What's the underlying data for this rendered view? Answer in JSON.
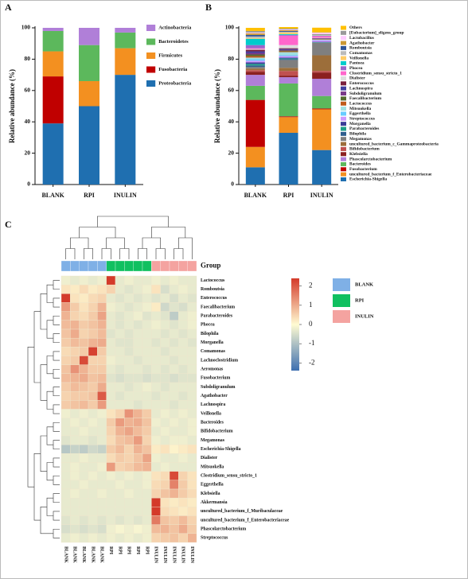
{
  "chart_data": [
    {
      "type": "stacked_bar",
      "panel_label": "A",
      "ylabel": "Relative abundance (%)",
      "categories": [
        "BLANK",
        "RPI",
        "INULIN"
      ],
      "series": [
        {
          "name": "Proteobacteria",
          "color": "#1f6fb0",
          "values": [
            39,
            50,
            70
          ]
        },
        {
          "name": "Fusobacteria",
          "color": "#c00000",
          "values": [
            30,
            0,
            0
          ]
        },
        {
          "name": "Firmicutes",
          "color": "#f39020",
          "values": [
            16,
            16,
            17
          ]
        },
        {
          "name": "Bacteroidetes",
          "color": "#5cb85c",
          "values": [
            13,
            23,
            10
          ]
        },
        {
          "name": "Actinobacteria",
          "color": "#b07fd8",
          "values": [
            2,
            11,
            3
          ]
        }
      ],
      "ylim": [
        0,
        100
      ],
      "yticks": [
        0,
        20,
        40,
        60,
        80,
        100
      ]
    },
    {
      "type": "stacked_bar",
      "panel_label": "B",
      "ylabel": "Relative abundance (%)",
      "categories": [
        "BLANK",
        "RPI",
        "INULIN"
      ],
      "series": [
        {
          "name": "Escherichia-Shigella",
          "color": "#1f6fb0",
          "values": [
            11,
            33,
            22
          ]
        },
        {
          "name": "uncultured_bacterium_f_Enterobacteriaceae",
          "color": "#f39020",
          "values": [
            13,
            10,
            26
          ]
        },
        {
          "name": "Fusobacterium",
          "color": "#c00000",
          "values": [
            30,
            0.5,
            0.5
          ]
        },
        {
          "name": "Bacteroides",
          "color": "#5cb85c",
          "values": [
            9,
            21,
            8
          ]
        },
        {
          "name": "Phascolarctobacterium",
          "color": "#b07fd8",
          "values": [
            7,
            4,
            11
          ]
        },
        {
          "name": "Klebsiella",
          "color": "#8b2020",
          "values": [
            2,
            1,
            4
          ]
        },
        {
          "name": "Bifidobacterium",
          "color": "#c05050",
          "values": [
            1,
            3,
            1
          ]
        },
        {
          "name": "uncultured_bacterium_c_Gammaproteobacteria",
          "color": "#9c6e3a",
          "values": [
            1,
            2,
            10
          ]
        },
        {
          "name": "Megamonas",
          "color": "#7f7f7f",
          "values": [
            1,
            5,
            8
          ]
        },
        {
          "name": "Bilophila",
          "color": "#2e5e8e",
          "values": [
            1,
            0.5,
            0.2
          ]
        },
        {
          "name": "Parabacteroides",
          "color": "#1f9e89",
          "values": [
            1,
            0.5,
            0.2
          ]
        },
        {
          "name": "Morganella",
          "color": "#3b3b98",
          "values": [
            1,
            0.5,
            0.2
          ]
        },
        {
          "name": "Streptococcus",
          "color": "#cc99ff",
          "values": [
            1,
            1,
            1
          ]
        },
        {
          "name": "Eggerthella",
          "color": "#66ccff",
          "values": [
            1,
            0.5,
            0.2
          ]
        },
        {
          "name": "Mitsuokella",
          "color": "#a0e0e0",
          "values": [
            1,
            2,
            0.2
          ]
        },
        {
          "name": "Lactococcus",
          "color": "#c05a1a",
          "values": [
            1,
            0.5,
            0.2
          ]
        },
        {
          "name": "Faecalibacterium",
          "color": "#556b2f",
          "values": [
            1,
            0.5,
            0.2
          ]
        },
        {
          "name": "Subdoligranulum",
          "color": "#7a3a8a",
          "values": [
            1,
            0.5,
            0.2
          ]
        },
        {
          "name": "Lachnospira",
          "color": "#4040a0",
          "values": [
            1,
            0.5,
            0.2
          ]
        },
        {
          "name": "Enterococcus",
          "color": "#7a1f3d",
          "values": [
            1,
            0.5,
            0.2
          ]
        },
        {
          "name": "Dialister",
          "color": "#dddddd",
          "values": [
            0.5,
            2,
            0.2
          ]
        },
        {
          "name": "Clostridium_sensu_stricto_1",
          "color": "#ff66cc",
          "values": [
            0.5,
            6,
            1
          ]
        },
        {
          "name": "Phocea",
          "color": "#9966cc",
          "values": [
            2,
            0.5,
            0.2
          ]
        },
        {
          "name": "Pantoea",
          "color": "#00cccc",
          "values": [
            4,
            0.5,
            0.2
          ]
        },
        {
          "name": "Veillonella",
          "color": "#ffcc66",
          "values": [
            0.5,
            1,
            0.2
          ]
        },
        {
          "name": "Comamonas",
          "color": "#bbbbbb",
          "values": [
            1,
            0.5,
            0.2
          ]
        },
        {
          "name": "Romboutsia",
          "color": "#2f5597",
          "values": [
            1,
            0.5,
            0.2
          ]
        },
        {
          "name": "Agathobacter",
          "color": "#cc9933",
          "values": [
            1,
            0.5,
            0.2
          ]
        },
        {
          "name": "Lactobacillus",
          "color": "#ffccff",
          "values": [
            0.5,
            0.5,
            1
          ]
        },
        {
          "name": "[Eubacterium]_eligens_group",
          "color": "#999999",
          "values": [
            1,
            0.5,
            0.2
          ]
        },
        {
          "name": "Others",
          "color": "#ffc000",
          "values": [
            2,
            1,
            3
          ]
        }
      ],
      "ylim": [
        0,
        100
      ],
      "yticks": [
        0,
        20,
        40,
        60,
        80,
        100
      ]
    },
    {
      "type": "heatmap",
      "panel_label": "C",
      "legend_title": "Group",
      "rows": [
        "Lactococcus",
        "Romboutsia",
        "Enterococcus",
        "Faecalibacterium",
        "Parabacteroides",
        "Phocea",
        "Bilophila",
        "Morganella",
        "Comamonas",
        "Lachnoclostridium",
        "Aeromonas",
        "Fusobacterium",
        "Subdoligranulum",
        "Agathobacter",
        "Lachnospira",
        "Veillonella",
        "Bacteroides",
        "Bifidobacterium",
        "Megamonas",
        "Escherichia-Shigella",
        "Dialister",
        "Mitsuokella",
        "Clostridium_sensu_stricto_1",
        "Eggerthella",
        "Klebsiella",
        "Akkermansia",
        "uncultured_bacterium_f_Muribaculaceae",
        "uncultured_bacterium_f_Enterobacteriaceae",
        "Phascolarctobacterium",
        "Streptococcus"
      ],
      "columns": [
        "BLANK",
        "BLANK",
        "BLANK",
        "BLANK",
        "BLANK",
        "RPI",
        "RPI",
        "RPI",
        "RPI",
        "RPI",
        "INULIN",
        "INULIN",
        "INULIN",
        "INULIN",
        "INULIN"
      ],
      "values": [
        [
          -0.2,
          -0.3,
          -0.2,
          -0.3,
          -0.2,
          2.5,
          -0.3,
          -0.2,
          -0.3,
          -0.3,
          -0.2,
          -0.3,
          -0.2,
          -0.3,
          -0.3
        ],
        [
          0.3,
          0.2,
          0.4,
          0.2,
          0.3,
          0.5,
          -0.3,
          -0.4,
          -0.3,
          -0.2,
          0.3,
          -0.5,
          -0.3,
          -0.2,
          -0.3
        ],
        [
          2.4,
          0.3,
          0.2,
          0.4,
          0.5,
          -0.3,
          -0.4,
          -0.3,
          -0.4,
          -0.3,
          -0.4,
          -0.3,
          -0.5,
          -0.3,
          -0.4
        ],
        [
          1.2,
          0.6,
          0.3,
          0.5,
          0.9,
          -0.2,
          -0.3,
          -0.4,
          -0.3,
          -0.2,
          0.2,
          -0.6,
          -0.4,
          -0.5,
          -0.3
        ],
        [
          0.9,
          0.5,
          0.4,
          0.6,
          1.1,
          -0.3,
          -0.4,
          -0.3,
          -0.2,
          -0.4,
          -0.3,
          -0.4,
          -0.8,
          -0.3,
          -0.2
        ],
        [
          0.8,
          0.9,
          0.6,
          0.7,
          0.9,
          -0.3,
          -0.4,
          -0.3,
          -0.4,
          -0.3,
          -0.2,
          -0.3,
          -0.4,
          -0.3,
          -0.2
        ],
        [
          0.7,
          1.0,
          0.5,
          0.6,
          0.8,
          -0.4,
          -0.3,
          -0.4,
          -0.3,
          -0.3,
          -0.3,
          -0.4,
          -0.3,
          -0.4,
          -0.3
        ],
        [
          0.6,
          0.8,
          0.7,
          0.9,
          1.0,
          -0.3,
          -0.4,
          -0.4,
          -0.3,
          -0.3,
          -0.4,
          -0.3,
          -0.4,
          -0.3,
          -0.4
        ],
        [
          0.4,
          0.5,
          0.6,
          2.3,
          0.6,
          -0.3,
          -0.3,
          -0.4,
          -0.3,
          -0.3,
          -0.3,
          -0.4,
          -0.3,
          -0.3,
          -0.3
        ],
        [
          0.5,
          0.6,
          2.2,
          0.5,
          0.5,
          -0.2,
          -0.3,
          -0.3,
          -0.4,
          -0.3,
          -0.3,
          -0.3,
          -0.4,
          -0.3,
          -0.3
        ],
        [
          0.7,
          1.3,
          0.9,
          0.6,
          0.6,
          -0.3,
          -0.4,
          -0.3,
          -0.3,
          -0.4,
          -0.3,
          -0.4,
          -0.3,
          -0.4,
          -0.3
        ],
        [
          0.8,
          0.9,
          1.0,
          0.7,
          0.8,
          -0.4,
          -0.5,
          -0.4,
          -0.4,
          -0.5,
          -0.4,
          -0.4,
          -0.5,
          -0.4,
          -0.4
        ],
        [
          0.6,
          0.8,
          0.7,
          0.6,
          1.0,
          -0.3,
          -0.3,
          -0.4,
          -0.3,
          -0.2,
          -0.3,
          -0.4,
          -0.3,
          -0.3,
          -0.3
        ],
        [
          0.5,
          0.6,
          0.6,
          0.7,
          2.0,
          -0.3,
          -0.4,
          -0.3,
          -0.3,
          -0.3,
          -0.4,
          -0.3,
          -0.3,
          -0.4,
          -0.3
        ],
        [
          0.6,
          0.7,
          0.8,
          0.6,
          1.2,
          -0.3,
          -0.3,
          -0.3,
          -0.4,
          -0.3,
          -0.3,
          -0.3,
          -0.4,
          -0.3,
          -0.3
        ],
        [
          -0.2,
          -0.3,
          -0.2,
          -0.3,
          -0.2,
          0.3,
          0.5,
          1.3,
          0.9,
          0.6,
          -0.3,
          -0.2,
          -0.3,
          -0.2,
          -0.3
        ],
        [
          -0.3,
          -0.2,
          -0.3,
          -0.2,
          -0.3,
          0.6,
          1.2,
          0.9,
          1.0,
          0.7,
          -0.2,
          -0.3,
          -0.2,
          -0.3,
          -0.2
        ],
        [
          -0.3,
          -0.3,
          -0.2,
          -0.3,
          -0.3,
          0.5,
          0.9,
          1.1,
          0.8,
          0.6,
          -0.3,
          -0.2,
          -0.3,
          -0.3,
          -0.2
        ],
        [
          -0.4,
          -0.3,
          -0.3,
          -0.4,
          -0.3,
          0.4,
          0.7,
          0.8,
          1.2,
          0.5,
          -0.2,
          -0.3,
          -0.2,
          -0.2,
          -0.3
        ],
        [
          -0.9,
          -0.7,
          -0.8,
          -0.6,
          -0.7,
          0.6,
          0.8,
          0.5,
          0.9,
          0.7,
          0.2,
          0.3,
          0.1,
          0.2,
          0.3
        ],
        [
          -0.3,
          -0.3,
          -0.2,
          -0.3,
          -0.3,
          0.4,
          0.6,
          0.5,
          0.7,
          1.1,
          -0.2,
          -0.3,
          -0.3,
          -0.2,
          -0.3
        ],
        [
          -0.3,
          -0.2,
          -0.3,
          -0.3,
          -0.2,
          1.2,
          0.5,
          0.6,
          0.8,
          0.9,
          -0.3,
          -0.2,
          -0.3,
          -0.3,
          -0.3
        ],
        [
          -0.3,
          -0.2,
          -0.3,
          -0.2,
          -0.3,
          -0.2,
          -0.3,
          -0.2,
          -0.3,
          -0.2,
          0.3,
          0.4,
          2.2,
          0.5,
          0.3
        ],
        [
          -0.3,
          -0.3,
          -0.2,
          -0.3,
          -0.3,
          -0.3,
          -0.2,
          -0.3,
          -0.3,
          -0.2,
          0.4,
          0.5,
          1.5,
          0.6,
          0.3
        ],
        [
          -0.3,
          -0.2,
          -0.3,
          -0.3,
          -0.2,
          -0.3,
          -0.3,
          -0.2,
          -0.3,
          -0.3,
          0.5,
          0.7,
          0.9,
          0.6,
          0.4
        ],
        [
          -0.3,
          -0.3,
          -0.3,
          -0.3,
          -0.3,
          -0.3,
          -0.3,
          -0.3,
          -0.3,
          -0.3,
          2.6,
          0.3,
          0.2,
          0.3,
          0.2
        ],
        [
          -0.3,
          -0.3,
          -0.3,
          -0.3,
          -0.3,
          -0.3,
          -0.3,
          -0.3,
          -0.3,
          -0.3,
          2.4,
          0.4,
          0.3,
          0.2,
          0.3
        ],
        [
          -0.4,
          -0.3,
          -0.4,
          -0.3,
          -0.4,
          -0.3,
          -0.4,
          -0.3,
          -0.4,
          -0.3,
          1.6,
          0.7,
          0.6,
          0.8,
          0.5
        ],
        [
          -0.5,
          -0.4,
          -0.5,
          -0.4,
          -0.5,
          -0.2,
          -0.1,
          -0.2,
          -0.1,
          -0.2,
          0.8,
          0.9,
          0.7,
          1.0,
          0.6
        ],
        [
          -0.3,
          -0.2,
          -0.3,
          -0.2,
          -0.3,
          -0.2,
          -0.3,
          -0.2,
          -0.3,
          -0.2,
          0.5,
          0.6,
          0.7,
          0.5,
          0.9
        ]
      ],
      "clim": [
        -2.4,
        2.4
      ],
      "cticks": [
        2,
        1,
        0,
        -1,
        -2
      ],
      "colors": [
        "#3d6fb0",
        "#fffbd2",
        "#d43a2a"
      ],
      "groups": [
        {
          "name": "BLANK",
          "color": "#7fb0e6"
        },
        {
          "name": "RPI",
          "color": "#10c060"
        },
        {
          "name": "INULIN",
          "color": "#f4a3a0"
        }
      ]
    }
  ]
}
